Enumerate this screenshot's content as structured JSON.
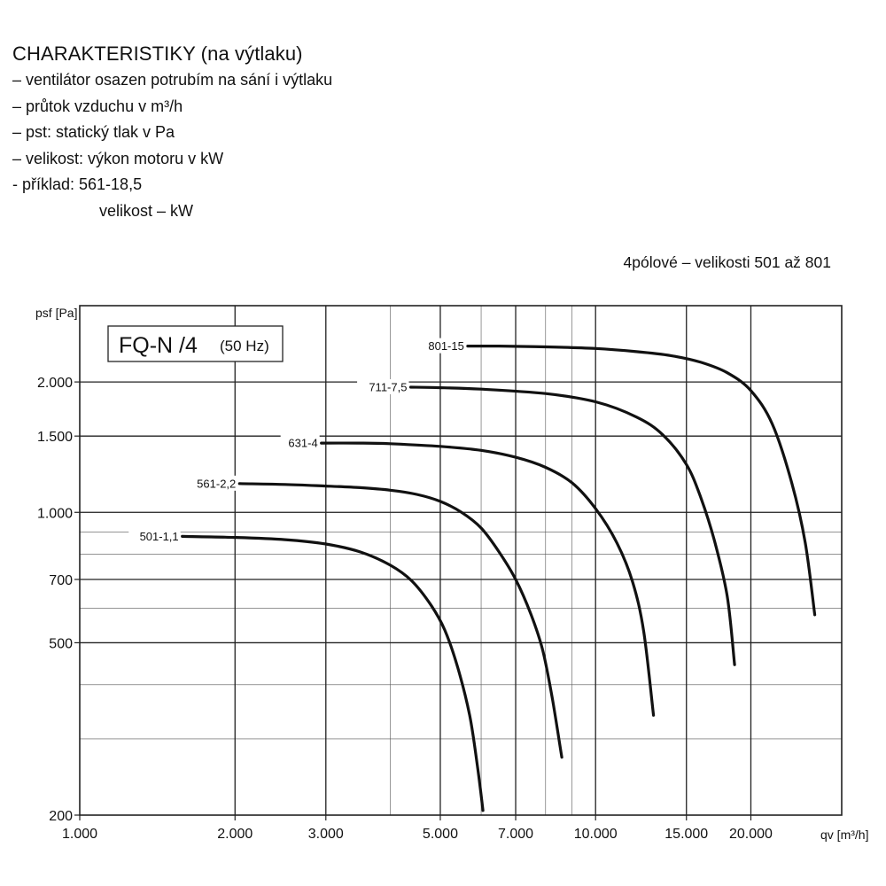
{
  "header": {
    "title": "CHARAKTERISTIKY (na výtlaku)",
    "lines": [
      "– ventilátor osazen potrubím na sání i výtlaku",
      "– průtok vzduchu v m³/h",
      "– pst: statický tlak v Pa",
      "– velikost: výkon motoru v kW",
      "- příklad: 561-18,5"
    ],
    "example_note": "velikost – kW"
  },
  "subtitle": "4pólové – velikosti 501 až 801",
  "chart_data": {
    "type": "line",
    "title": "FQ-N /4",
    "title_note": "(50 Hz)",
    "ylabel": "psf [Pa]",
    "xlabel": "qv [m³/h]",
    "x_scale": "log",
    "y_scale": "log",
    "xlim": [
      1000,
      30000
    ],
    "ylim": [
      200,
      3000
    ],
    "x_ticks": [
      {
        "value": 1000,
        "label": "1.000"
      },
      {
        "value": 2000,
        "label": "2.000"
      },
      {
        "value": 3000,
        "label": "3.000"
      },
      {
        "value": 5000,
        "label": "5.000"
      },
      {
        "value": 7000,
        "label": "7.000"
      },
      {
        "value": 10000,
        "label": "10.000"
      },
      {
        "value": 15000,
        "label": "15.000"
      },
      {
        "value": 20000,
        "label": "20.000"
      }
    ],
    "y_ticks": [
      {
        "value": 200,
        "label": "200"
      },
      {
        "value": 500,
        "label": "500"
      },
      {
        "value": 700,
        "label": "700"
      },
      {
        "value": 1000,
        "label": "1.000"
      },
      {
        "value": 1500,
        "label": "1.500"
      },
      {
        "value": 2000,
        "label": "2.000"
      }
    ],
    "grid": true,
    "series": [
      {
        "name": "501-1,1",
        "x": [
          1580,
          2000,
          2500,
          3000,
          3500,
          4000,
          4400,
          4800,
          5100,
          5400,
          5700,
          5900,
          6050
        ],
        "y": [
          880,
          875,
          865,
          845,
          810,
          755,
          695,
          610,
          535,
          440,
          340,
          260,
          205
        ]
      },
      {
        "name": "561-2,2",
        "x": [
          2040,
          2500,
          3000,
          3500,
          4000,
          4500,
          5000,
          5500,
          6000,
          6500,
          7000,
          7500,
          7900,
          8250,
          8600
        ],
        "y": [
          1165,
          1160,
          1150,
          1140,
          1125,
          1100,
          1060,
          1000,
          920,
          810,
          700,
          580,
          480,
          370,
          272
        ]
      },
      {
        "name": "631-4",
        "x": [
          2940,
          3500,
          4000,
          5000,
          6000,
          7000,
          8000,
          9000,
          10000,
          11000,
          11800,
          12400,
          12950
        ],
        "y": [
          1445,
          1445,
          1440,
          1420,
          1390,
          1340,
          1270,
          1170,
          1020,
          850,
          690,
          530,
          340
        ]
      },
      {
        "name": "711-7,5",
        "x": [
          4380,
          5000,
          6000,
          8000,
          10000,
          12000,
          13500,
          15000,
          16000,
          17000,
          18000,
          18600
        ],
        "y": [
          1945,
          1940,
          1925,
          1880,
          1800,
          1660,
          1510,
          1290,
          1080,
          860,
          640,
          445
        ]
      },
      {
        "name": "801-15",
        "x": [
          5650,
          6500,
          8000,
          10000,
          12000,
          14000,
          16000,
          18000,
          20000,
          22000,
          24000,
          25500,
          26600
        ],
        "y": [
          2420,
          2420,
          2410,
          2390,
          2350,
          2300,
          2220,
          2100,
          1910,
          1600,
          1170,
          850,
          580
        ]
      }
    ]
  }
}
